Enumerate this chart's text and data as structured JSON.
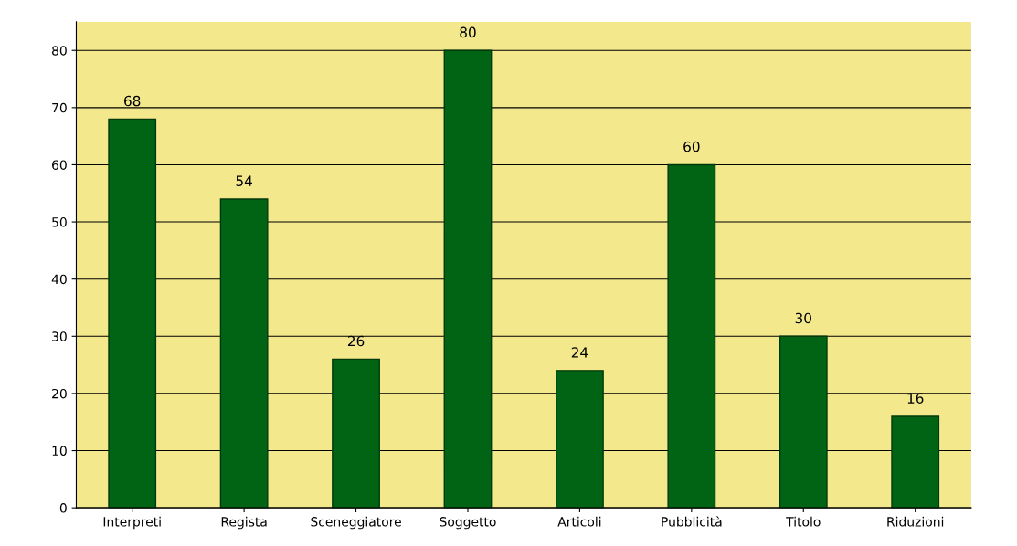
{
  "chart_data": {
    "type": "bar",
    "categories": [
      "Interpreti",
      "Regista",
      "Sceneggiatore",
      "Soggetto",
      "Articoli",
      "Pubblicità",
      "Titolo",
      "Riduzioni"
    ],
    "values": [
      68,
      54,
      26,
      80,
      24,
      60,
      30,
      16
    ],
    "color": "#006414",
    "ylim": [
      0,
      85
    ],
    "yticks": [
      0,
      10,
      20,
      30,
      40,
      50,
      60,
      70,
      80
    ],
    "grid": "y",
    "data_labels": true
  }
}
